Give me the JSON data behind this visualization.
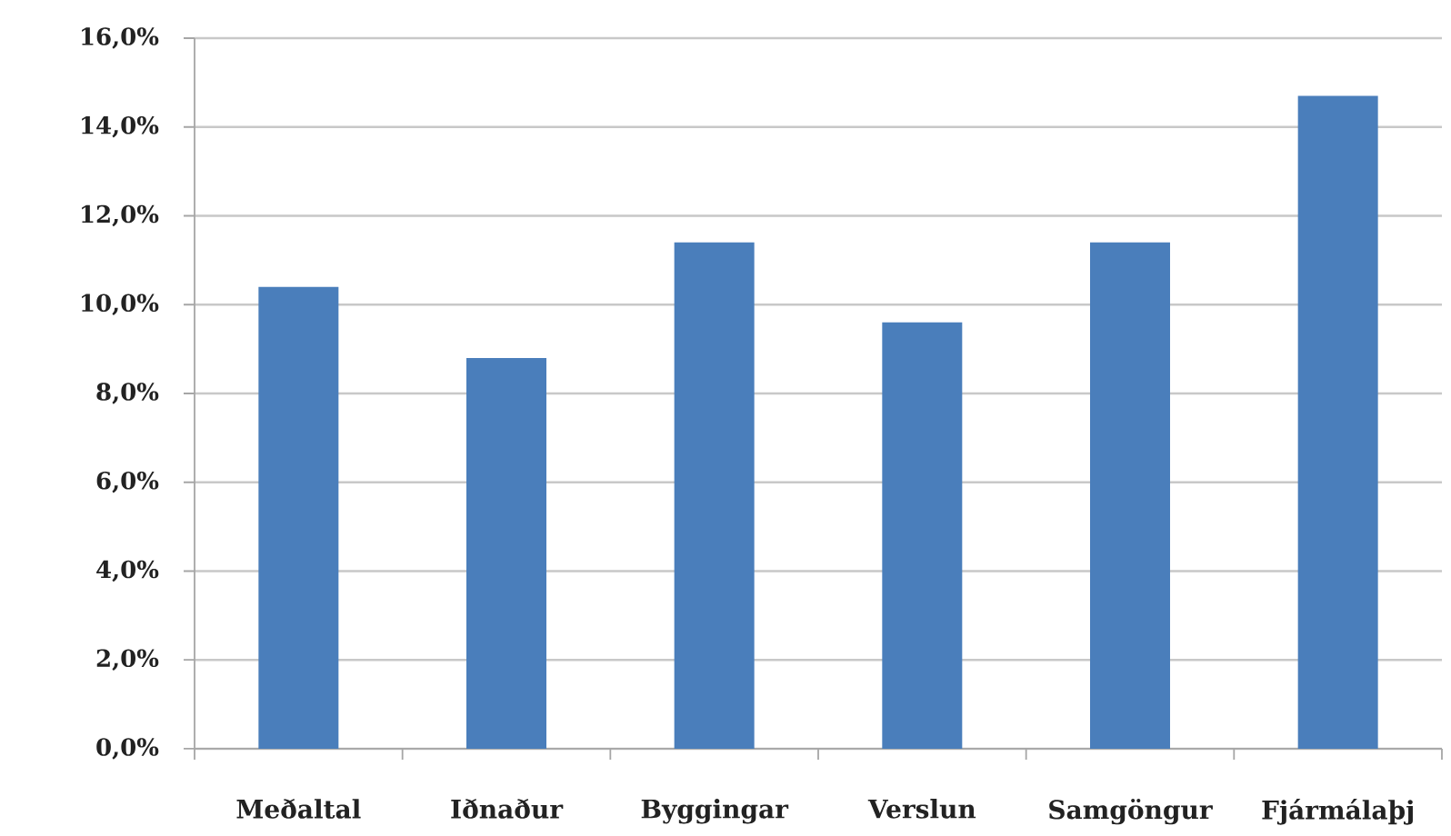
{
  "chart_data": {
    "type": "bar",
    "categories": [
      "Meðaltal",
      "Iðnaður",
      "Byggingar",
      "Verslun",
      "Samgöngur",
      "Fjármálaþj"
    ],
    "values": [
      10.4,
      8.8,
      11.4,
      9.6,
      11.4,
      14.7
    ],
    "color": "#4a7ebb",
    "ylim": [
      0,
      16
    ],
    "yticks": [
      {
        "value": 0,
        "label": "0,0%"
      },
      {
        "value": 2,
        "label": "2,0%"
      },
      {
        "value": 4,
        "label": "4,0%"
      },
      {
        "value": 6,
        "label": "6,0%"
      },
      {
        "value": 8,
        "label": "8,0%"
      },
      {
        "value": 10,
        "label": "10,0%"
      },
      {
        "value": 12,
        "label": "12,0%"
      },
      {
        "value": 14,
        "label": "14,0%"
      },
      {
        "value": 16,
        "label": "16,0%"
      }
    ],
    "grid": "y"
  }
}
